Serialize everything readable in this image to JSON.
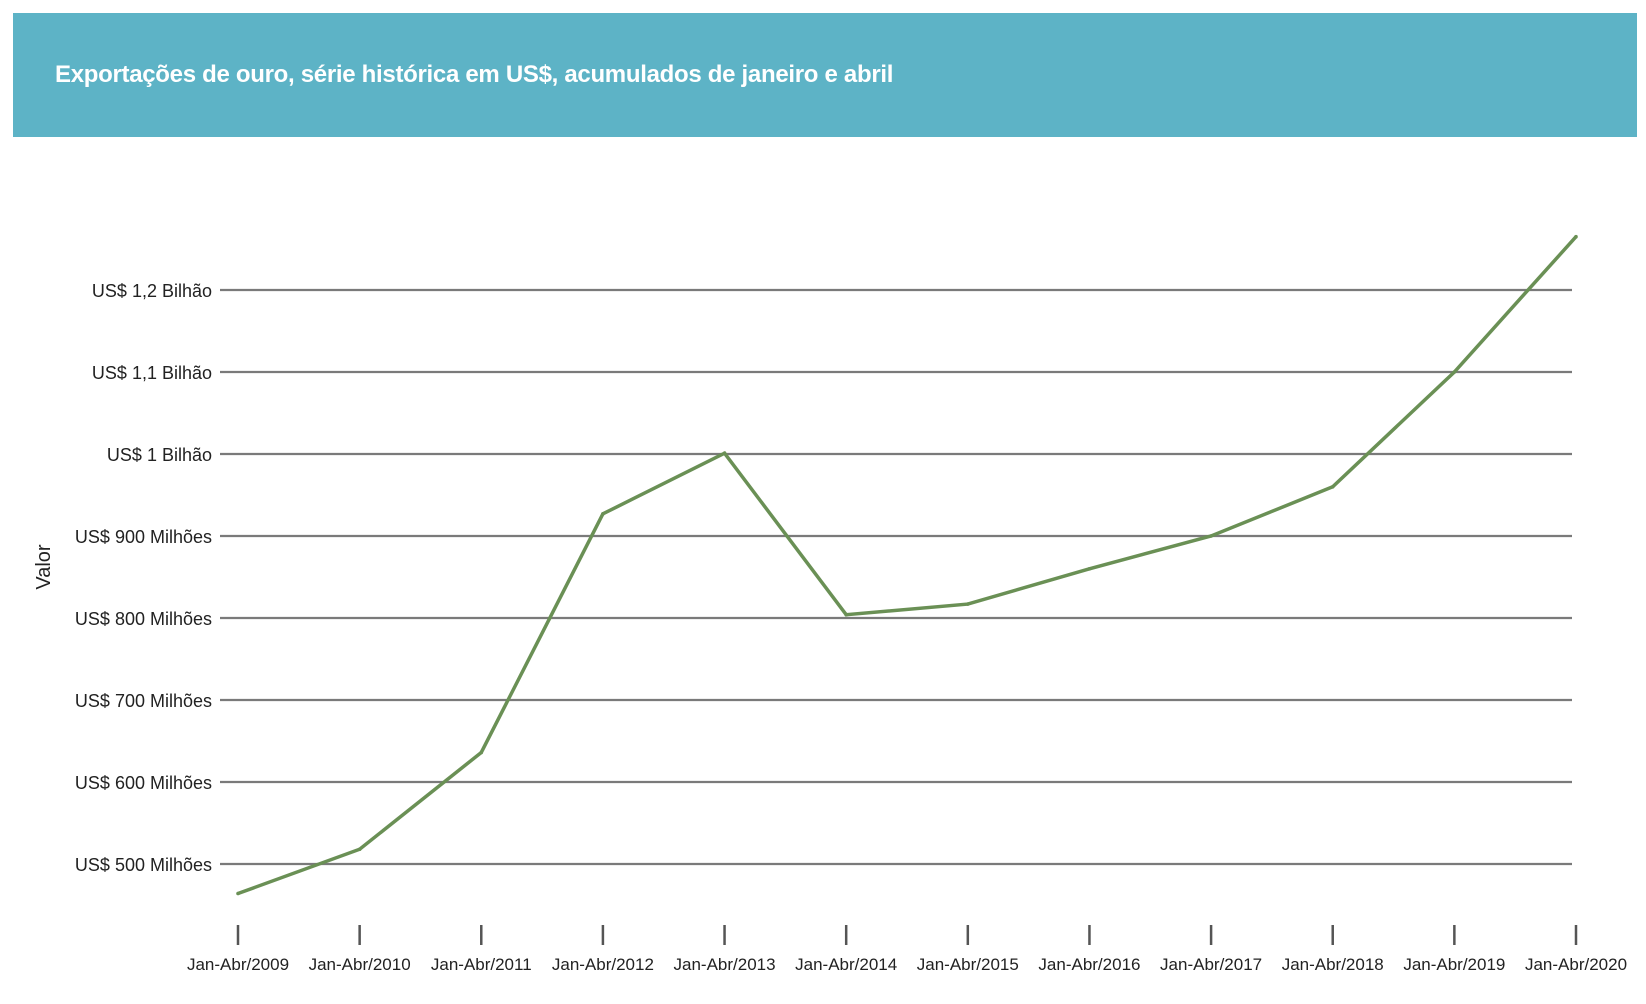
{
  "chart_data": {
    "type": "line",
    "title": "Exportações de ouro, série histórica em US$, acumulados de janeiro e abril",
    "xlabel": "",
    "ylabel": "Valor",
    "categories": [
      "Jan-Abr/2009",
      "Jan-Abr/2010",
      "Jan-Abr/2011",
      "Jan-Abr/2012",
      "Jan-Abr/2013",
      "Jan-Abr/2014",
      "Jan-Abr/2015",
      "Jan-Abr/2016",
      "Jan-Abr/2017",
      "Jan-Abr/2018",
      "Jan-Abr/2019",
      "Jan-Abr/2020"
    ],
    "series": [
      {
        "values": [
          464,
          518,
          636,
          927,
          1001,
          804,
          817,
          860,
          900,
          960,
          1100,
          1265
        ],
        "color": "#6a9055"
      }
    ],
    "yticks": [
      500,
      600,
      700,
      800,
      900,
      1000,
      1100,
      1200
    ],
    "ytick_labels": [
      "US$ 500 Milhões",
      "US$ 600 Milhões",
      "US$ 700 Milhões",
      "US$ 800 Milhões",
      "US$ 900 Milhões",
      "US$ 1 Bilhão",
      "US$ 1,1 Bilhão",
      "US$ 1,2 Bilhão"
    ],
    "ylim": [
      450,
      1300
    ],
    "grid": "horizontal",
    "legend": "none",
    "colors": {
      "banner": "#5db3c6",
      "gridline": "#7a7a7a",
      "tick": "#555555"
    }
  }
}
